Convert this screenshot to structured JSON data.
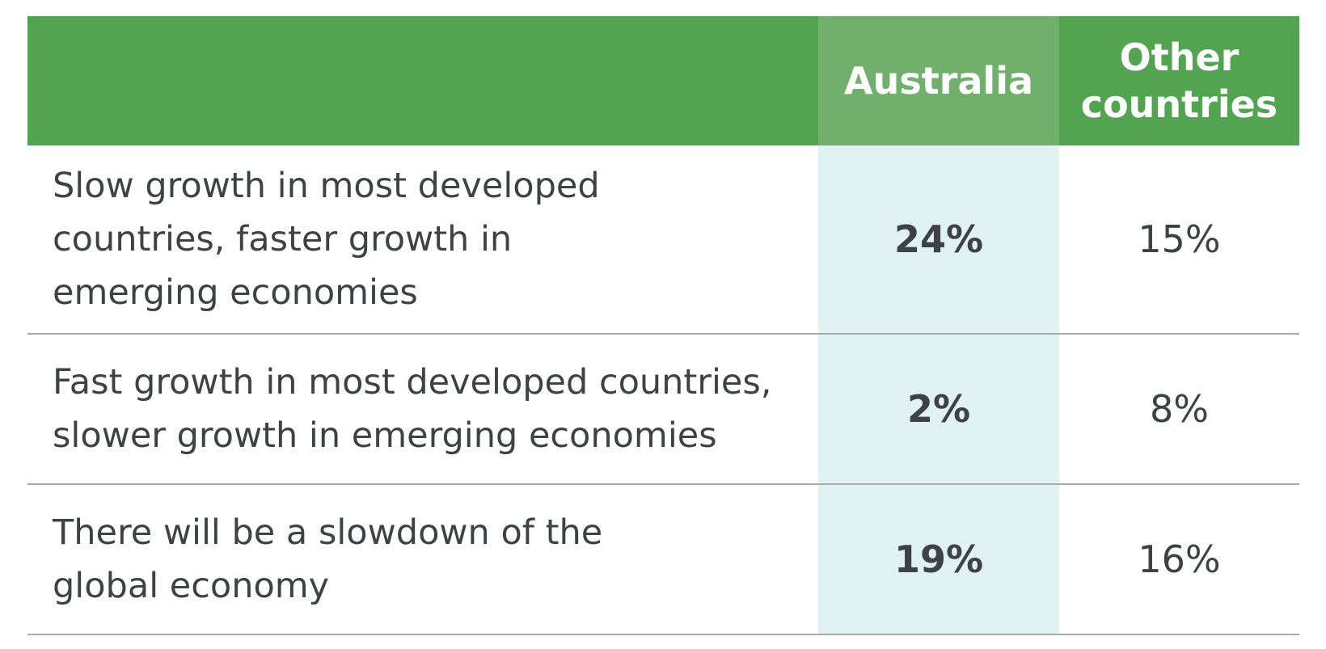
{
  "chart_data": {
    "type": "table",
    "columns": [
      "",
      "Australia",
      "Other countries"
    ],
    "column_display": [
      "",
      "Australia",
      "Other\ncountries"
    ],
    "rows": [
      {
        "label": "Slow growth in most developed countries, faster growth in emerging economies",
        "label_lines": [
          "Slow growth in most developed",
          "countries, faster growth in",
          "emerging economies"
        ],
        "australia": "24%",
        "other": "15%",
        "values": [
          24,
          15
        ]
      },
      {
        "label": "Fast growth in most developed countries, slower growth in emerging economies",
        "label_lines": [
          "Fast growth in most developed countries,",
          "slower growth in emerging economies"
        ],
        "australia": "2%",
        "other": "8%",
        "values": [
          2,
          8
        ]
      },
      {
        "label": "There will be a slowdown of the global economy",
        "label_lines": [
          "There will be a slowdown of the",
          "global economy"
        ],
        "australia": "19%",
        "other": "16%",
        "values": [
          19,
          16
        ]
      }
    ]
  },
  "colors": {
    "header_bg": "#52a451",
    "header_highlight_bg": "#70b06c",
    "highlight_column_bg": "#e1f2f2",
    "text": "#3f4245",
    "divider": "#a7a9ab"
  }
}
